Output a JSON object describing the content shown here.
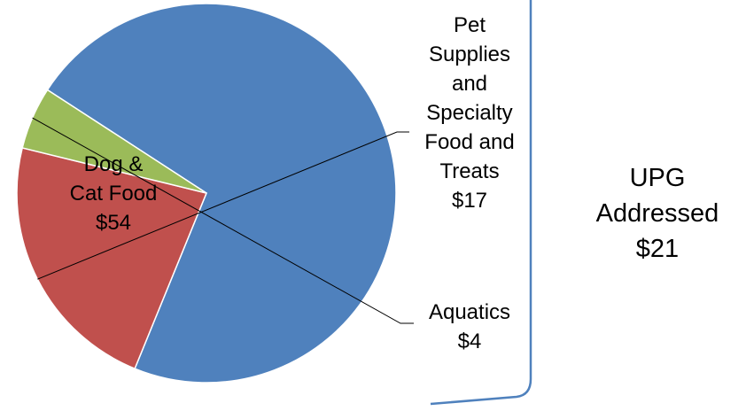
{
  "chart_data": {
    "type": "pie",
    "slices": [
      {
        "label": "Dog & Cat Food",
        "value": 54,
        "value_label": "$54",
        "color": "#4F81BD",
        "label_lines": [
          "Dog &",
          "Cat Food",
          "$54"
        ]
      },
      {
        "label": "Pet Supplies and Specialty Food and Treats",
        "value": 17,
        "value_label": "$17",
        "color": "#C0504D",
        "label_lines": [
          "Pet",
          "Supplies",
          "and",
          "Specialty",
          "Food and",
          "Treats",
          "$17"
        ]
      },
      {
        "label": "Aquatics",
        "value": 4,
        "value_label": "$4",
        "color": "#9BBB59",
        "label_lines": [
          "Aquatics",
          "$4"
        ]
      }
    ],
    "bracket_group": {
      "label_lines": [
        "UPG",
        "Addressed",
        "$21"
      ],
      "value": 21,
      "value_label": "$21",
      "color": "#4F81BD"
    }
  }
}
